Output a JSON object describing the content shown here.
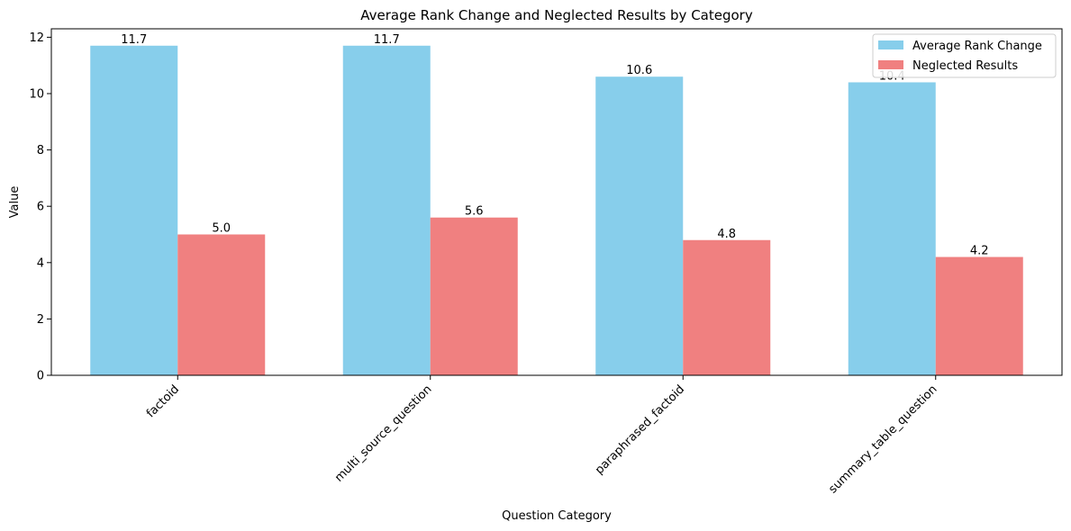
{
  "chart_data": {
    "type": "bar",
    "title": "Average Rank Change and Neglected Results by Category",
    "xlabel": "Question Category",
    "ylabel": "Value",
    "categories": [
      "factoid",
      "multi_source_question",
      "paraphrased_factoid",
      "summary_table_question"
    ],
    "series": [
      {
        "name": "Average Rank Change",
        "color": "#87CEEB",
        "values": [
          11.7,
          11.7,
          10.6,
          10.4
        ]
      },
      {
        "name": "Neglected Results",
        "color": "#F08080",
        "values": [
          5.0,
          5.6,
          4.8,
          4.2
        ]
      }
    ],
    "ylim": [
      0,
      12.3
    ],
    "yticks": [
      0,
      2,
      4,
      6,
      8,
      10,
      12
    ],
    "grid": false,
    "legend": "top-right",
    "data_labels": true
  }
}
